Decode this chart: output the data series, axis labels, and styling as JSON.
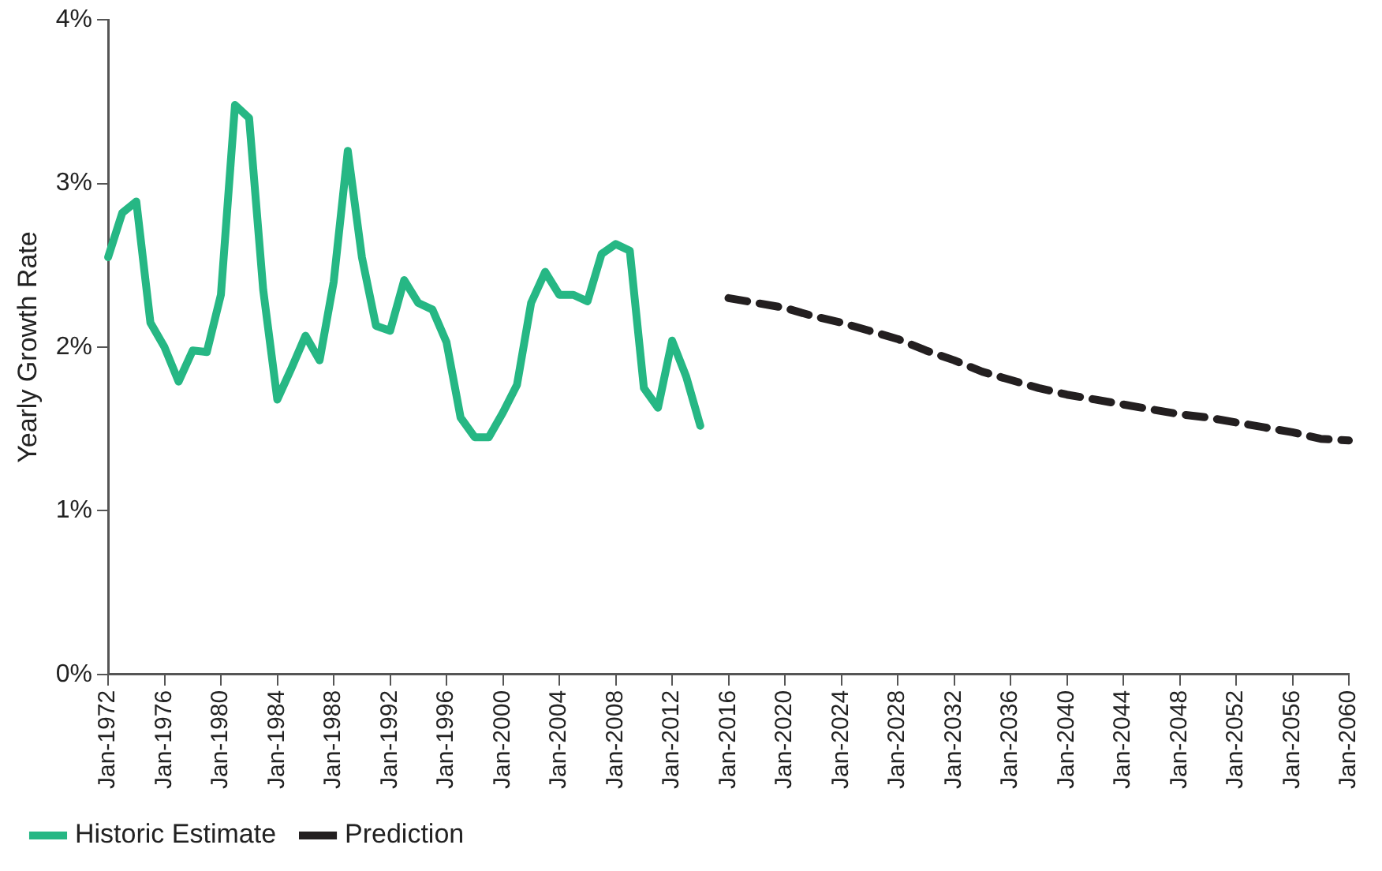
{
  "chart_data": {
    "type": "line",
    "ylabel": "Yearly Growth Rate",
    "categories": [
      "Jan-1972",
      null,
      null,
      null,
      "Jan-1976",
      null,
      null,
      null,
      "Jan-1980",
      null,
      null,
      null,
      "Jan-1984",
      null,
      null,
      null,
      "Jan-1988",
      null,
      null,
      null,
      "Jan-1992",
      null,
      null,
      null,
      "Jan-1996",
      null,
      null,
      null,
      "Jan-2000",
      null,
      null,
      null,
      "Jan-2004",
      null,
      null,
      null,
      "Jan-2008",
      null,
      null,
      null,
      "Jan-2012",
      null,
      null,
      null,
      "Jan-2016",
      null,
      null,
      null,
      "Jan-2020",
      null,
      null,
      null,
      "Jan-2024",
      null,
      null,
      null,
      "Jan-2028",
      null,
      null,
      null,
      "Jan-2032",
      null,
      null,
      null,
      "Jan-2036",
      null,
      null,
      null,
      "Jan-2040",
      null,
      null,
      null,
      "Jan-2044",
      null,
      null,
      null,
      "Jan-2048",
      null,
      null,
      null,
      "Jan-2052",
      null,
      null,
      null,
      "Jan-2056",
      null,
      null,
      null,
      "Jan-2060"
    ],
    "series": [
      {
        "name": "Historic Estimate",
        "color": "#26b784",
        "line_style": "solid",
        "values": [
          2.55,
          2.82,
          2.89,
          2.15,
          2.0,
          1.79,
          1.98,
          1.97,
          2.32,
          3.48,
          3.4,
          2.35,
          1.68,
          1.87,
          2.07,
          1.92,
          2.4,
          3.2,
          2.55,
          2.13,
          2.1,
          2.41,
          2.27,
          2.23,
          2.03,
          1.57,
          1.45,
          1.45,
          1.6,
          1.77,
          2.27,
          2.46,
          2.32,
          2.32,
          2.28,
          2.57,
          2.63,
          2.59,
          1.75,
          1.63,
          2.04,
          1.82,
          1.52,
          null,
          null,
          null,
          null,
          null,
          null,
          null,
          null,
          null,
          null,
          null,
          null,
          null,
          null,
          null,
          null,
          null,
          null,
          null,
          null,
          null,
          null,
          null,
          null,
          null,
          null,
          null,
          null,
          null,
          null,
          null,
          null,
          null,
          null,
          null,
          null,
          null,
          null,
          null,
          null,
          null,
          null,
          null,
          null,
          null,
          null
        ]
      },
      {
        "name": "Prediction",
        "color": "#231f20",
        "line_style": "dashed",
        "values": [
          null,
          null,
          null,
          null,
          null,
          null,
          null,
          null,
          null,
          null,
          null,
          null,
          null,
          null,
          null,
          null,
          null,
          null,
          null,
          null,
          null,
          null,
          null,
          null,
          null,
          null,
          null,
          null,
          null,
          null,
          null,
          null,
          null,
          null,
          null,
          null,
          null,
          null,
          null,
          null,
          null,
          null,
          null,
          null,
          2.3,
          null,
          2.27,
          null,
          2.24,
          null,
          2.19,
          null,
          2.15,
          null,
          2.1,
          null,
          2.05,
          null,
          1.98,
          null,
          1.92,
          null,
          1.85,
          null,
          1.8,
          null,
          1.75,
          null,
          1.71,
          null,
          1.68,
          null,
          1.65,
          null,
          1.62,
          null,
          1.59,
          null,
          1.57,
          null,
          1.54,
          null,
          1.51,
          null,
          1.48,
          null,
          1.44,
          null,
          1.43
        ]
      }
    ],
    "ylim": [
      0,
      4
    ],
    "yticks": [
      {
        "value": 0,
        "label": "0%"
      },
      {
        "value": 1,
        "label": "1%"
      },
      {
        "value": 2,
        "label": "2%"
      },
      {
        "value": 3,
        "label": "3%"
      },
      {
        "value": 4,
        "label": "4%"
      }
    ],
    "grid": false,
    "legend": "bottom left",
    "marker": "none"
  }
}
